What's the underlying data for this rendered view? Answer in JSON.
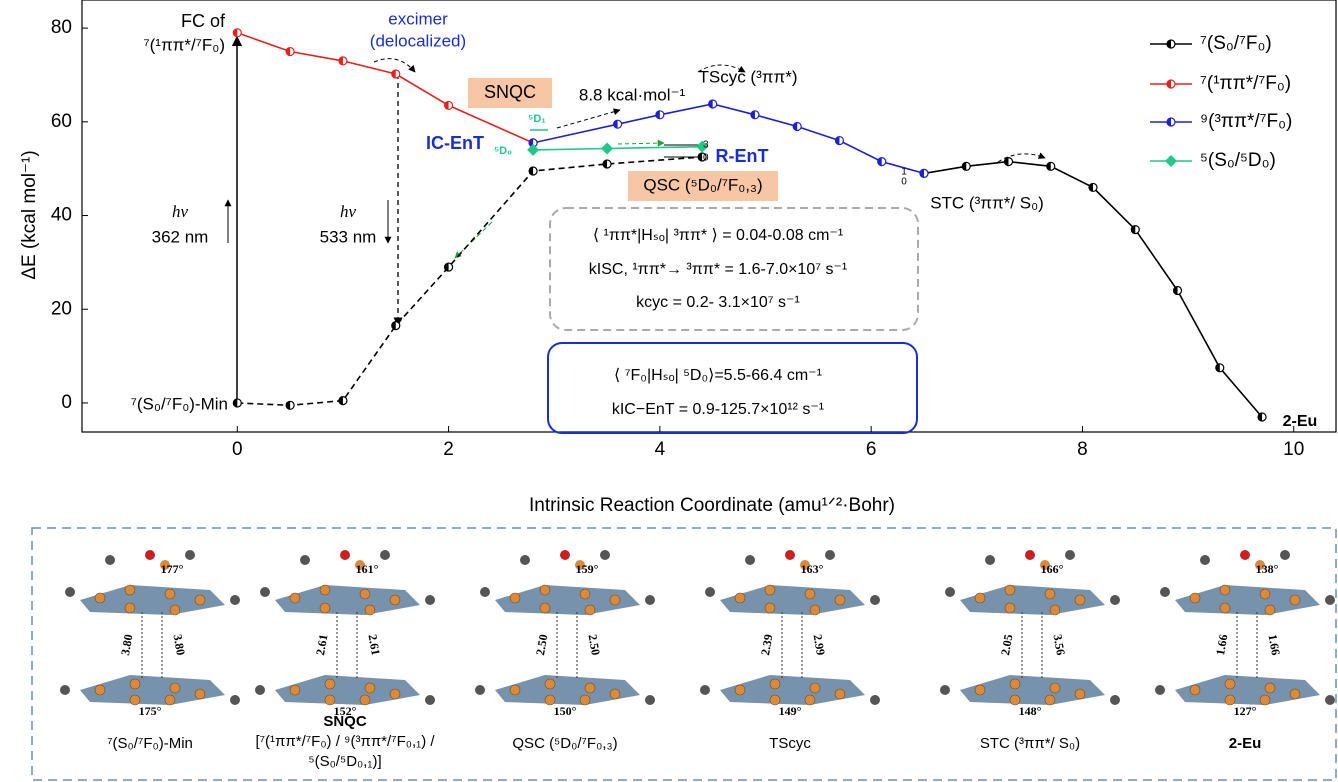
{
  "chart_data": {
    "type": "line",
    "x_label": "Intrinsic Reaction Coordinate (amu¹ᐟ²·Bohr)",
    "y_label": "ΔE (kcal mol⁻¹)",
    "xlim": [
      -1.47,
      10.4
    ],
    "ylim": [
      -6.2,
      86
    ],
    "xticks": [
      0,
      2,
      4,
      6,
      8,
      10
    ],
    "yticks": [
      0,
      20,
      40,
      60,
      80
    ],
    "legend": "top-right",
    "series": [
      {
        "name": "⁷(S₀/⁷F₀)",
        "color": "#000000",
        "marker": "half-circle",
        "dash": [
          true,
          false
        ],
        "x": [
          0,
          0.5,
          1,
          1.5,
          2,
          2.8,
          3.5,
          4.4,
          null,
          6.5,
          6.9,
          7.3,
          7.7,
          8.1,
          8.5,
          8.9,
          9.3,
          9.7
        ],
        "values": [
          0,
          -0.5,
          0.5,
          16.5,
          29,
          49.5,
          51,
          52.5,
          null,
          49,
          50.5,
          51.5,
          50.5,
          46,
          37,
          24,
          7.5,
          -3
        ]
      },
      {
        "name": "⁷(¹ππ*/⁷F₀)",
        "color": "#e8201c",
        "marker": "half-circle",
        "dash": [
          false
        ],
        "x": [
          0,
          0.5,
          1,
          1.5,
          2,
          2.8
        ],
        "values": [
          79,
          75,
          73,
          70.2,
          63.5,
          55.5
        ]
      },
      {
        "name": "⁹(³ππ*/⁷F₀)",
        "color": "#2020d0",
        "marker": "half-circle",
        "dash": [
          false
        ],
        "x": [
          2.8,
          3.6,
          4.0,
          4.5,
          4.9,
          5.3,
          5.7,
          6.1,
          6.5
        ],
        "values": [
          55.5,
          59.5,
          61.5,
          63.8,
          61.5,
          59,
          56,
          51.5,
          49
        ]
      },
      {
        "name": "⁵(S₀/⁵D₀)",
        "color": "#1ec98a",
        "marker": "diamond",
        "dash": [
          false
        ],
        "x": [
          2.8,
          3.5,
          4.4
        ],
        "values": [
          54,
          54.3,
          54.7
        ]
      }
    ],
    "annotations": [
      {
        "text": "FC of"
      },
      {
        "text": "⁷(¹ππ*/⁷F₀)"
      },
      {
        "text": "excimer"
      },
      {
        "text": "(delocalized)"
      },
      {
        "text": "SNQC"
      },
      {
        "text": "8.8 kcal·mol⁻¹"
      },
      {
        "text": "TScyc (³ππ*)"
      },
      {
        "text": "IC-EnT"
      },
      {
        "text": "⁵D₁"
      },
      {
        "text": "⁵D₀"
      },
      {
        "text": "R-EnT"
      },
      {
        "text": "QSC (⁵D₀/⁷F₀,₃)"
      },
      {
        "text": "STC (³ππ*/ S₀)"
      },
      {
        "text": "hv"
      },
      {
        "text": "362 nm"
      },
      {
        "text": "hv"
      },
      {
        "text": "533 nm"
      },
      {
        "text": "⁷(S₀/⁷F₀)-Min"
      },
      {
        "text": "2-Eu"
      },
      {
        "text": "3"
      },
      {
        "text": "0"
      },
      {
        "text": "1"
      },
      {
        "text": "0"
      },
      {
        "text": "⟨ ¹ππ*|Hₛₒ| ³ππ* ⟩ = 0.04-0.08 cm⁻¹"
      },
      {
        "text": "kISC, ¹ππ*→ ³ππ* = 1.6-7.0×10⁷ s⁻¹"
      },
      {
        "text": "kcyc = 0.2- 3.1×10⁷ s⁻¹"
      },
      {
        "text": "⟨ ⁷F₀|Hₛₒ| ⁵D₀⟩=5.5-66.4 cm⁻¹"
      },
      {
        "text": "kIC−EnT = 0.9-125.7×10¹² s⁻¹"
      }
    ]
  },
  "structures": [
    {
      "caption": [
        "⁷(S₀/⁷F₀)-Min"
      ],
      "labels": [
        "177°",
        "3.80",
        "3.80",
        "175°"
      ]
    },
    {
      "caption": [
        "SNQC",
        "[⁷(¹ππ*/⁷F₀) / ⁹(³ππ*/⁷F₀,₁) /",
        "⁵(S₀/⁵D₀,₁)]"
      ],
      "labels": [
        "161°",
        "2.61",
        "2.61",
        "152°"
      ]
    },
    {
      "caption": [
        "QSC (⁵D₀/⁷F₀,₃)"
      ],
      "labels": [
        "159°",
        "2.50",
        "2.50",
        "150°"
      ]
    },
    {
      "caption": [
        "TScyc"
      ],
      "labels": [
        "163°",
        "2.39",
        "2.99",
        "149°"
      ]
    },
    {
      "caption": [
        "STC (³ππ*/ S₀)"
      ],
      "labels": [
        "166°",
        "2.05",
        "3.56",
        "148°"
      ]
    },
    {
      "caption": [
        "2-Eu"
      ],
      "labels": [
        "138°",
        "1.66",
        "1.66",
        "127°"
      ]
    }
  ]
}
